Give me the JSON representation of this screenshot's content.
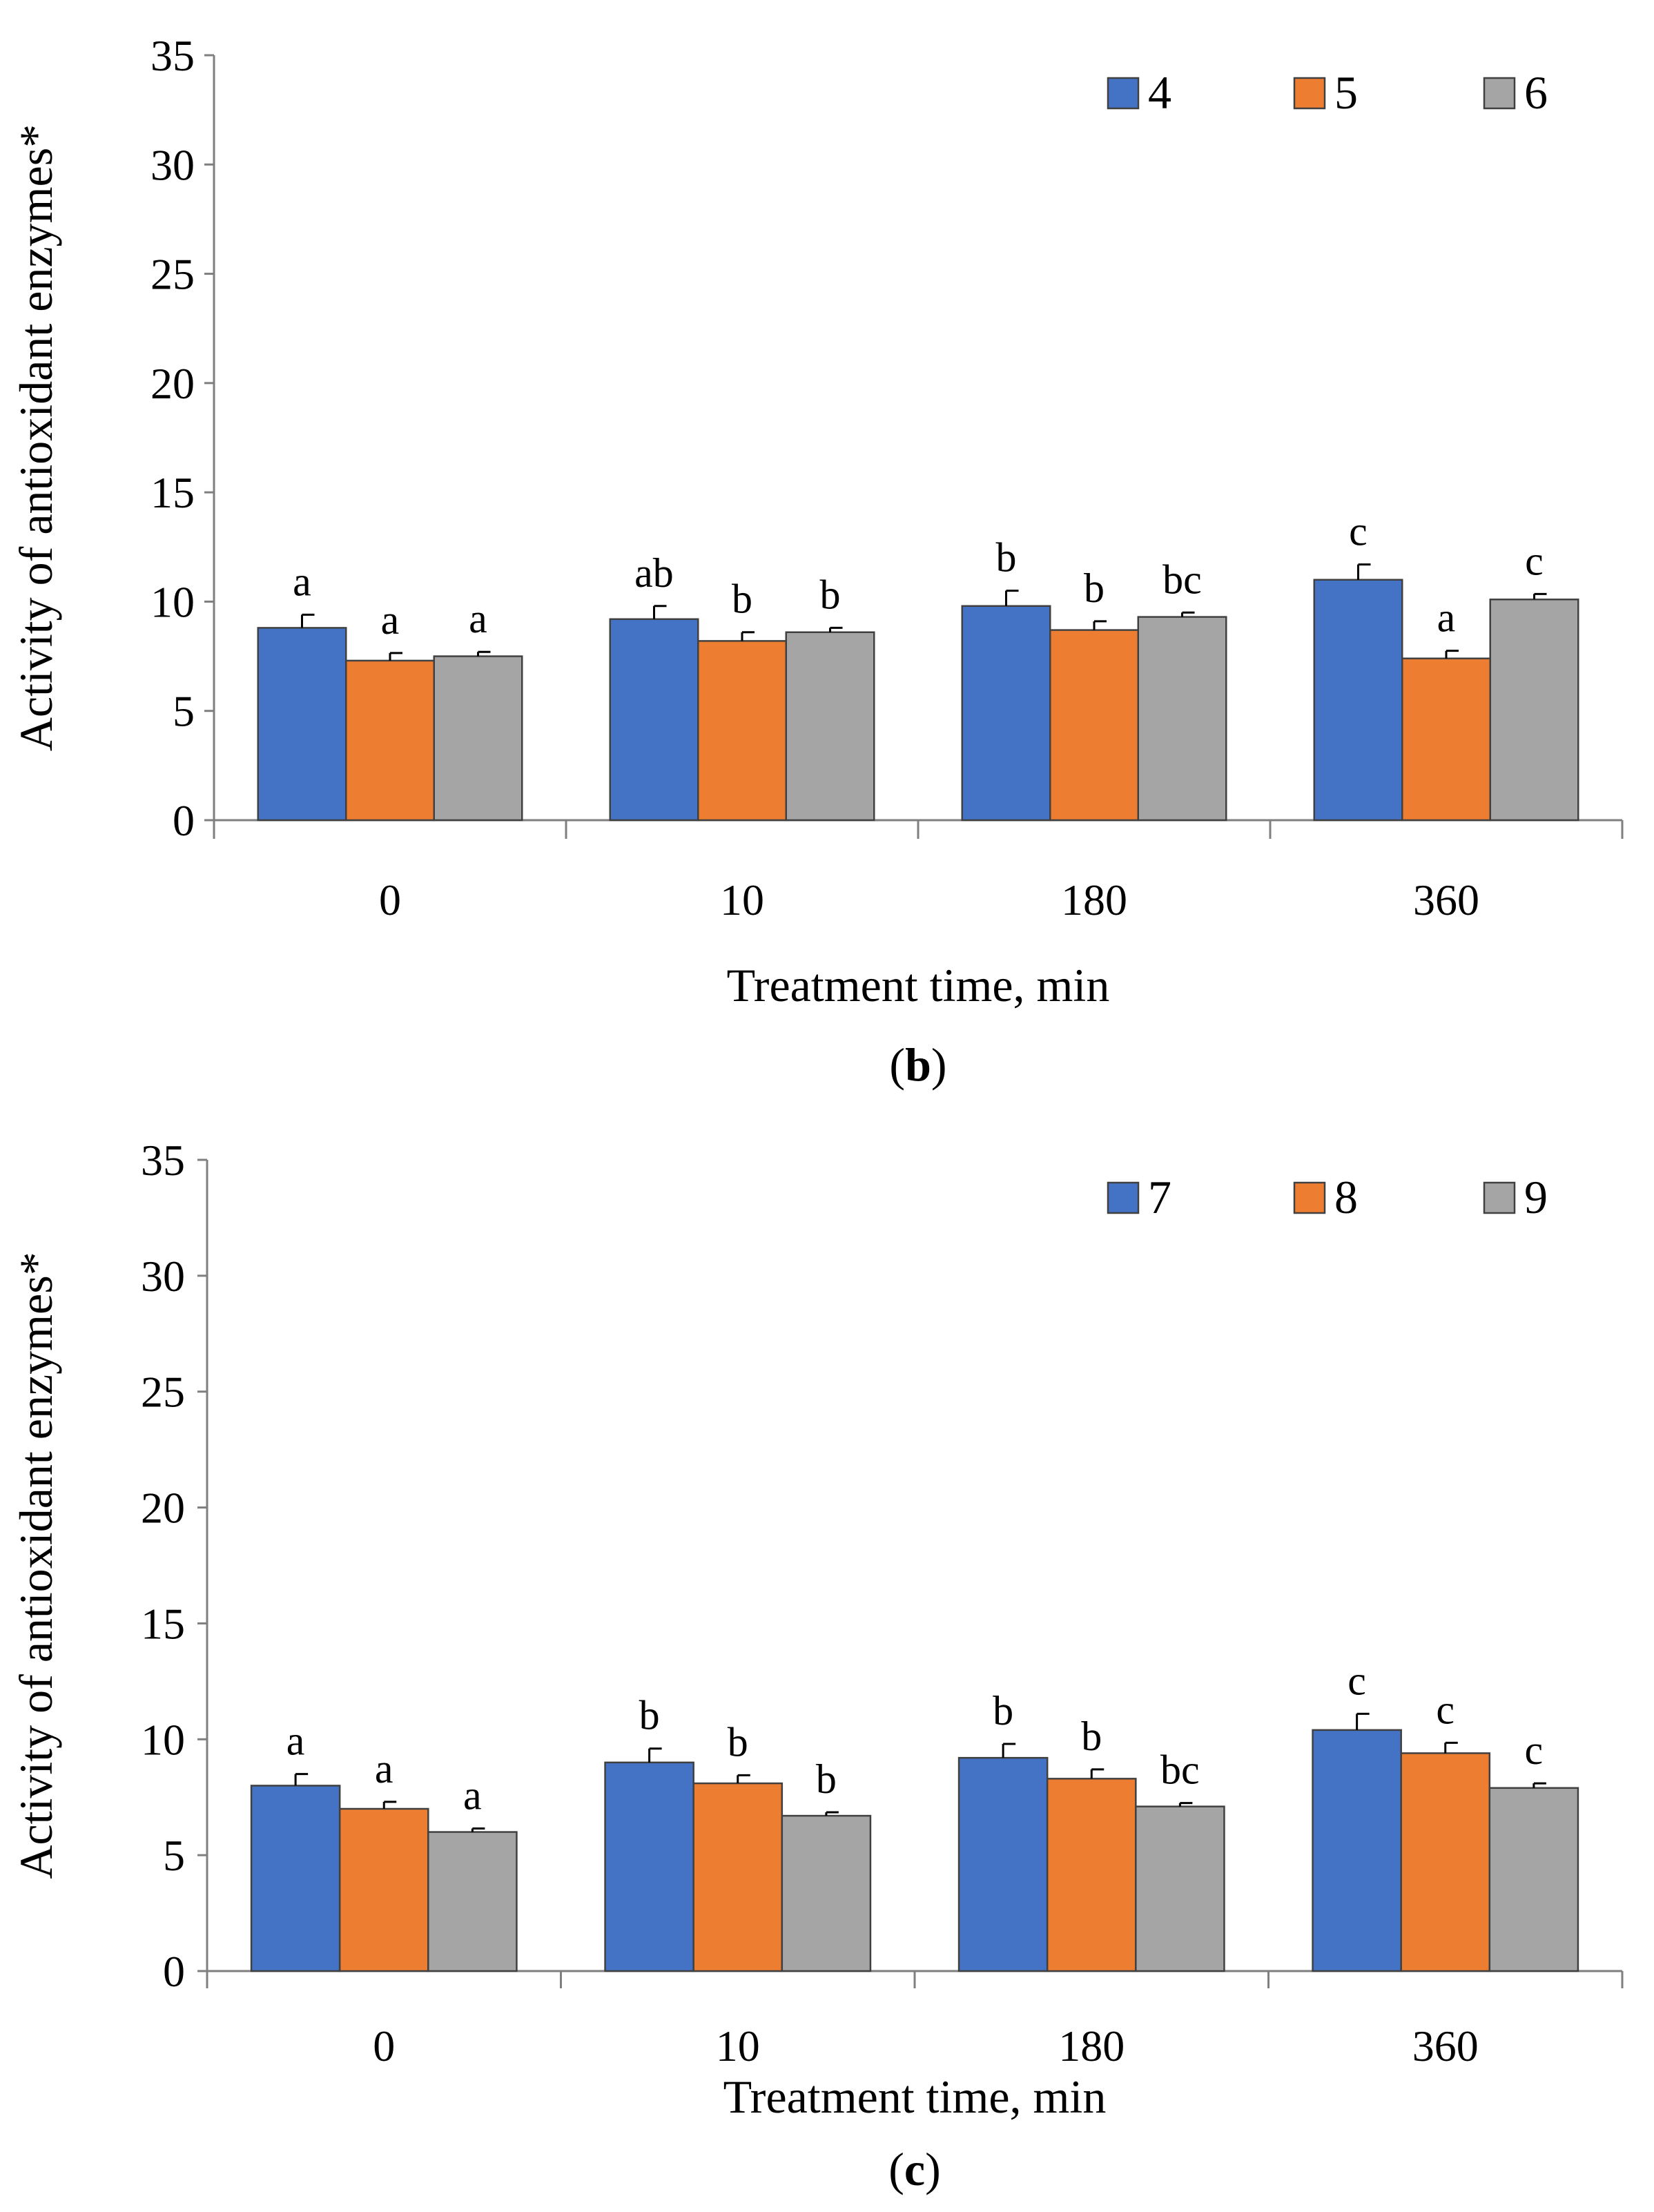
{
  "chart_data": [
    {
      "type": "bar",
      "panel_label": "b",
      "title": "",
      "xlabel": "Treatment time, min",
      "ylabel": "Activity of antioxidant enzymes*",
      "ylim": [
        0,
        35
      ],
      "yticks": [
        0,
        5,
        10,
        15,
        20,
        25,
        30,
        35
      ],
      "grid": false,
      "legend_position": "top-right",
      "categories": [
        "0",
        "10",
        "180",
        "360"
      ],
      "series": [
        {
          "name": "4",
          "color": "#4472C4",
          "values": [
            8.8,
            9.2,
            9.8,
            11.0
          ],
          "errors": [
            0.6,
            0.6,
            0.7,
            0.7
          ],
          "labels": [
            "a",
            "ab",
            "b",
            "c"
          ]
        },
        {
          "name": "5",
          "color": "#ED7D31",
          "values": [
            7.3,
            8.2,
            8.7,
            7.4
          ],
          "errors": [
            0.35,
            0.4,
            0.4,
            0.35
          ],
          "labels": [
            "a",
            "b",
            "b",
            "a"
          ]
        },
        {
          "name": "6",
          "color": "#A5A5A5",
          "values": [
            7.5,
            8.6,
            9.3,
            10.1
          ],
          "errors": [
            0.2,
            0.2,
            0.2,
            0.25
          ],
          "labels": [
            "a",
            "b",
            "bc",
            "c"
          ]
        }
      ]
    },
    {
      "type": "bar",
      "panel_label": "c",
      "title": "",
      "xlabel": "Treatment time, min",
      "ylabel": "Activity of antioxidant enzymes*",
      "ylim": [
        0,
        35
      ],
      "yticks": [
        0,
        5,
        10,
        15,
        20,
        25,
        30,
        35
      ],
      "grid": false,
      "legend_position": "top-right",
      "categories": [
        "0",
        "10",
        "180",
        "360"
      ],
      "series": [
        {
          "name": "7",
          "color": "#4472C4",
          "values": [
            8.0,
            9.0,
            9.2,
            10.4
          ],
          "errors": [
            0.5,
            0.6,
            0.6,
            0.7
          ],
          "labels": [
            "a",
            "b",
            "b",
            "c"
          ]
        },
        {
          "name": "8",
          "color": "#ED7D31",
          "values": [
            7.0,
            8.1,
            8.3,
            9.4
          ],
          "errors": [
            0.3,
            0.35,
            0.4,
            0.45
          ],
          "labels": [
            "a",
            "b",
            "b",
            "c"
          ]
        },
        {
          "name": "9",
          "color": "#A5A5A5",
          "values": [
            6.0,
            6.7,
            7.1,
            7.9
          ],
          "errors": [
            0.15,
            0.15,
            0.15,
            0.2
          ],
          "labels": [
            "a",
            "b",
            "bc",
            "c"
          ]
        }
      ]
    }
  ]
}
